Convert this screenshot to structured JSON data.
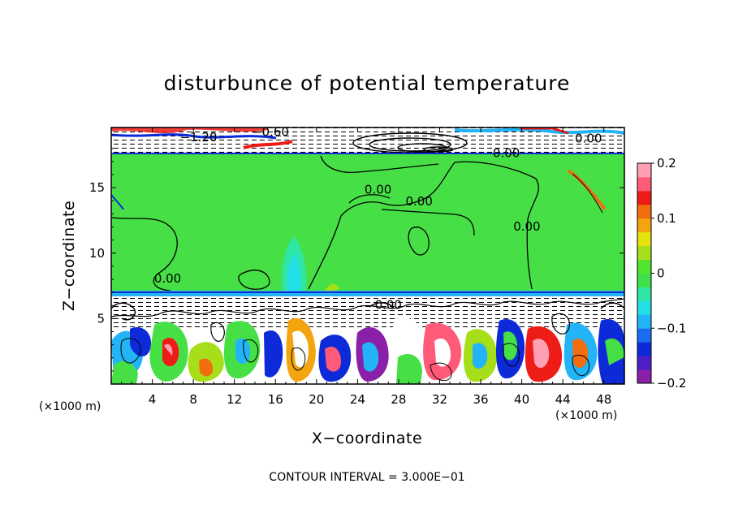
{
  "chart_data": {
    "type": "heatmap",
    "title": "disturbunce of potential temperature",
    "xlabel": "X−coordinate",
    "ylabel": "Z−coordinate",
    "x_unit_left": "(×1000 m)",
    "x_unit_right": "(×1000 m)",
    "xlim": [
      0,
      50
    ],
    "ylim": [
      0,
      19.6
    ],
    "x_ticks": [
      4,
      8,
      12,
      16,
      20,
      24,
      28,
      32,
      36,
      40,
      44,
      48
    ],
    "x_tick_labels": [
      "4",
      "8",
      "12",
      "16",
      "20",
      "24",
      "28",
      "32",
      "36",
      "40",
      "44",
      "48"
    ],
    "y_ticks": [
      5,
      10,
      15
    ],
    "y_tick_labels": [
      "5",
      "10",
      "15"
    ],
    "colorbar": {
      "range": [
        -0.2,
        0.2
      ],
      "ticks": [
        0.2,
        0.1,
        0,
        -0.1,
        -0.2
      ],
      "tick_labels": [
        "0.2",
        "0.1",
        "0",
        "−0.1",
        "−0.2"
      ],
      "colors": [
        "#8a1fa8",
        "#4c1fc8",
        "#0d2ad8",
        "#1a6cf2",
        "#22b4f6",
        "#22e0e6",
        "#30e6a4",
        "#40e04a",
        "#52e52e",
        "#a6de1a",
        "#e6e20e",
        "#f4a40e",
        "#f26c10",
        "#ee1c16",
        "#ff5a78",
        "#ff9fb4"
      ]
    },
    "contour_labels": [
      {
        "text": "−1.20",
        "x": 8.5,
        "z": 18.6
      },
      {
        "text": "−0.60",
        "x": 15.5,
        "z": 19.0
      },
      {
        "text": "0.00",
        "x": 38.5,
        "z": 17.4
      },
      {
        "text": "0.00",
        "x": 46.5,
        "z": 18.5
      },
      {
        "text": "0.00",
        "x": 26.0,
        "z": 14.6
      },
      {
        "text": "0.00",
        "x": 30.0,
        "z": 13.7
      },
      {
        "text": "0.00",
        "x": 40.5,
        "z": 11.8
      },
      {
        "text": "0.00",
        "x": 5.5,
        "z": 7.8
      },
      {
        "text": "0.00",
        "x": 27.0,
        "z": 5.8
      }
    ],
    "contour_interval_text": "CONTOUR INTERVAL = 3.000E−01"
  }
}
